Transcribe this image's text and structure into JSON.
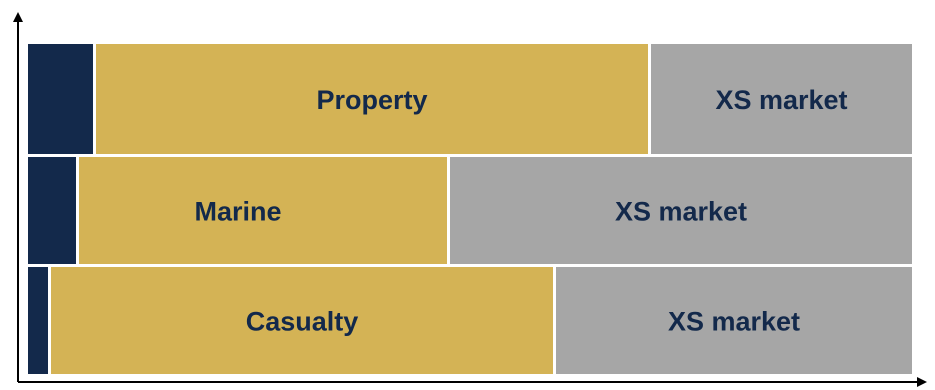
{
  "colors": {
    "dark": "#13294b",
    "gold": "#d4b355",
    "grey": "#a6a6a6",
    "text": "#13294b",
    "axis": "#000000"
  },
  "rows": [
    {
      "name": "property",
      "segments": [
        {
          "kind": "retention",
          "color_key": "dark",
          "label": ""
        },
        {
          "kind": "line",
          "color_key": "gold",
          "label": "Property"
        },
        {
          "kind": "xs",
          "color_key": "grey",
          "label": "XS market"
        }
      ]
    },
    {
      "name": "marine",
      "segments": [
        {
          "kind": "retention",
          "color_key": "dark",
          "label": ""
        },
        {
          "kind": "line",
          "color_key": "gold",
          "label": "Marine"
        },
        {
          "kind": "xs",
          "color_key": "grey",
          "label": "XS market"
        }
      ]
    },
    {
      "name": "casualty",
      "segments": [
        {
          "kind": "retention",
          "color_key": "dark",
          "label": ""
        },
        {
          "kind": "line",
          "color_key": "gold",
          "label": "Casualty"
        },
        {
          "kind": "xs",
          "color_key": "grey",
          "label": "XS market"
        }
      ]
    }
  ]
}
